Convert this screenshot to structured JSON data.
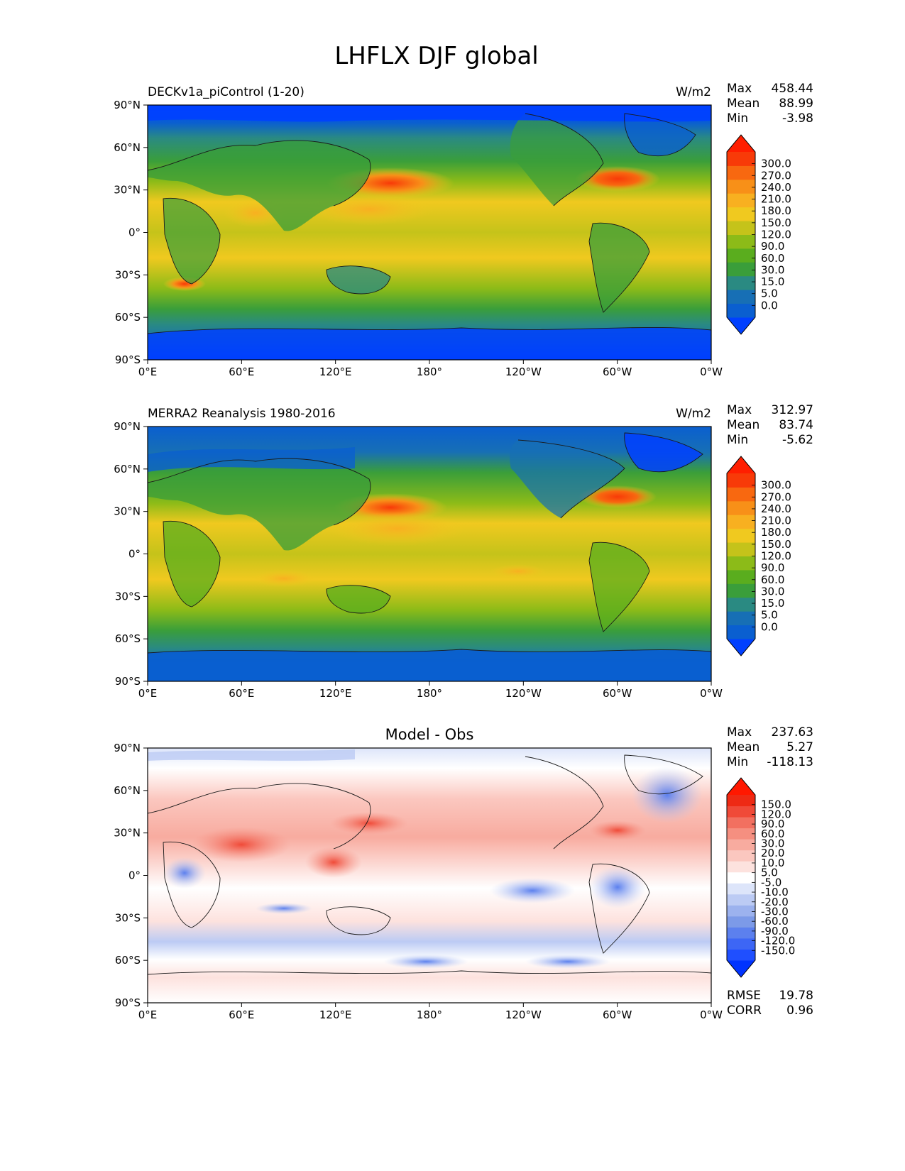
{
  "figure_title": "LHFLX DJF global",
  "colors": {
    "ocean_deep": "#0047ff",
    "frame": "#000000",
    "coast": "#1a1a1a"
  },
  "chart_data": [
    {
      "type": "heatmap",
      "panel": "test",
      "title_left": "DECKv1a_piControl (1-20)",
      "title_right": "W/m2",
      "stats": [
        {
          "label": "Max",
          "value": "458.44"
        },
        {
          "label": "Mean",
          "value": "88.99"
        },
        {
          "label": "Min",
          "value": "-3.98"
        }
      ],
      "x_ticks": [
        "0°E",
        "60°E",
        "120°E",
        "180°",
        "120°W",
        "60°W",
        "0°W"
      ],
      "y_ticks": [
        "90°N",
        "60°N",
        "30°N",
        "0°",
        "30°S",
        "60°S",
        "90°S"
      ],
      "xlim": [
        0,
        360
      ],
      "ylim": [
        -90,
        90
      ],
      "colorbar": {
        "levels": [
          "0.0",
          "5.0",
          "15.0",
          "30.0",
          "60.0",
          "90.0",
          "120.0",
          "150.0",
          "180.0",
          "210.0",
          "240.0",
          "270.0",
          "300.0"
        ],
        "colors": [
          "#0040ff",
          "#0a5fd0",
          "#176fb5",
          "#2a8a82",
          "#3a9e3a",
          "#5aad1e",
          "#8cbb18",
          "#c5c31a",
          "#f0c91f",
          "#f8b020",
          "#f89018",
          "#f86810",
          "#f83a08",
          "#ff1e00"
        ]
      }
    },
    {
      "type": "heatmap",
      "panel": "reference",
      "title_left": "MERRA2 Reanalysis 1980-2016",
      "title_right": "W/m2",
      "stats": [
        {
          "label": "Max",
          "value": "312.97"
        },
        {
          "label": "Mean",
          "value": "83.74"
        },
        {
          "label": "Min",
          "value": "-5.62"
        }
      ],
      "x_ticks": [
        "0°E",
        "60°E",
        "120°E",
        "180°",
        "120°W",
        "60°W",
        "0°W"
      ],
      "y_ticks": [
        "90°N",
        "60°N",
        "30°N",
        "0°",
        "30°S",
        "60°S",
        "90°S"
      ],
      "xlim": [
        0,
        360
      ],
      "ylim": [
        -90,
        90
      ],
      "colorbar": {
        "levels": [
          "0.0",
          "5.0",
          "15.0",
          "30.0",
          "60.0",
          "90.0",
          "120.0",
          "150.0",
          "180.0",
          "210.0",
          "240.0",
          "270.0",
          "300.0"
        ],
        "colors": [
          "#0040ff",
          "#0a5fd0",
          "#176fb5",
          "#2a8a82",
          "#3a9e3a",
          "#5aad1e",
          "#8cbb18",
          "#c5c31a",
          "#f0c91f",
          "#f8b020",
          "#f89018",
          "#f86810",
          "#f83a08",
          "#ff1e00"
        ]
      }
    },
    {
      "type": "heatmap",
      "panel": "difference",
      "title_center": "Model - Obs",
      "stats": [
        {
          "label": "Max",
          "value": "237.63"
        },
        {
          "label": "Mean",
          "value": "5.27"
        },
        {
          "label": "Min",
          "value": "-118.13"
        }
      ],
      "metrics": [
        {
          "label": "RMSE",
          "value": "19.78"
        },
        {
          "label": "CORR",
          "value": "0.96"
        }
      ],
      "x_ticks": [
        "0°E",
        "60°E",
        "120°E",
        "180°",
        "120°W",
        "60°W",
        "0°W"
      ],
      "y_ticks": [
        "90°N",
        "60°N",
        "30°N",
        "0°",
        "30°S",
        "60°S",
        "90°S"
      ],
      "xlim": [
        0,
        360
      ],
      "ylim": [
        -90,
        90
      ],
      "colorbar": {
        "levels": [
          "-150.0",
          "-120.0",
          "-90.0",
          "-60.0",
          "-30.0",
          "-20.0",
          "-10.0",
          "-5.0",
          "5.0",
          "10.0",
          "20.0",
          "30.0",
          "60.0",
          "90.0",
          "120.0",
          "150.0"
        ],
        "colors": [
          "#0033ff",
          "#1f4fff",
          "#3d66f5",
          "#5c80ee",
          "#7c9ae8",
          "#9cb2ee",
          "#bccbf4",
          "#dde5fa",
          "#ffffff",
          "#fde2de",
          "#fbc7bf",
          "#f8ab9f",
          "#f58f80",
          "#f27060",
          "#f04a38",
          "#ee2a14",
          "#ff1800"
        ]
      }
    }
  ]
}
